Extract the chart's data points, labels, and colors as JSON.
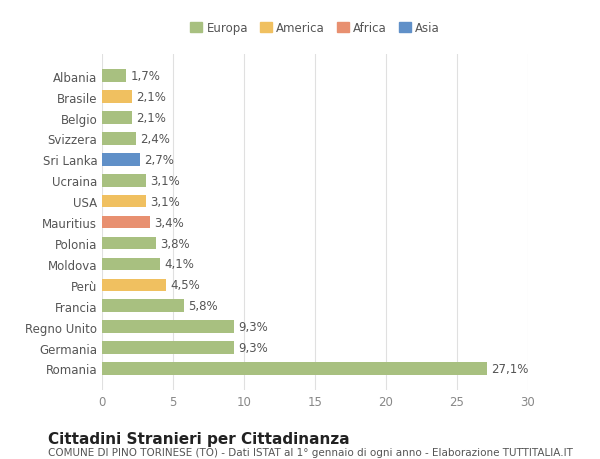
{
  "categories": [
    "Romania",
    "Germania",
    "Regno Unito",
    "Francia",
    "Perù",
    "Moldova",
    "Polonia",
    "Mauritius",
    "USA",
    "Ucraina",
    "Sri Lanka",
    "Svizzera",
    "Belgio",
    "Brasile",
    "Albania"
  ],
  "values": [
    27.1,
    9.3,
    9.3,
    5.8,
    4.5,
    4.1,
    3.8,
    3.4,
    3.1,
    3.1,
    2.7,
    2.4,
    2.1,
    2.1,
    1.7
  ],
  "labels": [
    "27,1%",
    "9,3%",
    "9,3%",
    "5,8%",
    "4,5%",
    "4,1%",
    "3,8%",
    "3,4%",
    "3,1%",
    "3,1%",
    "2,7%",
    "2,4%",
    "2,1%",
    "2,1%",
    "1,7%"
  ],
  "colors": [
    "#a8c080",
    "#a8c080",
    "#a8c080",
    "#a8c080",
    "#f0c060",
    "#a8c080",
    "#a8c080",
    "#e89070",
    "#f0c060",
    "#a8c080",
    "#6090c8",
    "#a8c080",
    "#a8c080",
    "#f0c060",
    "#a8c080"
  ],
  "continent_colors": {
    "Europa": "#a8c080",
    "America": "#f0c060",
    "Africa": "#e89070",
    "Asia": "#6090c8"
  },
  "legend_labels": [
    "Europa",
    "America",
    "Africa",
    "Asia"
  ],
  "xlim": [
    0,
    30
  ],
  "xticks": [
    0,
    5,
    10,
    15,
    20,
    25,
    30
  ],
  "title": "Cittadini Stranieri per Cittadinanza",
  "subtitle": "COMUNE DI PINO TORINESE (TO) - Dati ISTAT al 1° gennaio di ogni anno - Elaborazione TUTTITALIA.IT",
  "bg_color": "#ffffff",
  "grid_color": "#e0e0e0",
  "bar_height": 0.6,
  "label_fontsize": 8.5,
  "tick_fontsize": 8.5,
  "title_fontsize": 11,
  "subtitle_fontsize": 7.5
}
